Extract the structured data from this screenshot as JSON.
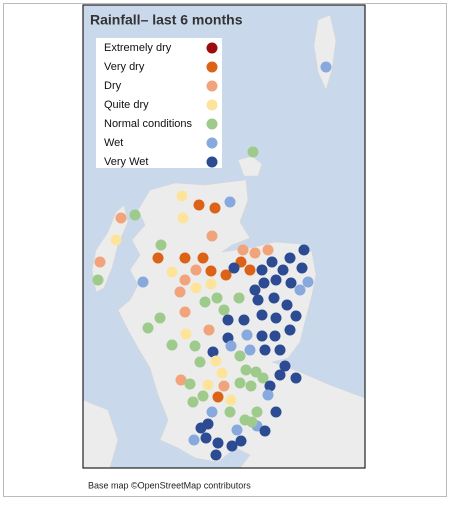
{
  "title": "Rainfall– last 6 months",
  "legend": {
    "items": [
      {
        "label": "Extremely dry",
        "color": "#9b0d0d"
      },
      {
        "label": "Very dry",
        "color": "#dc6217"
      },
      {
        "label": "Dry",
        "color": "#f1a47b"
      },
      {
        "label": "Quite dry",
        "color": "#fde49a"
      },
      {
        "label": "Normal conditions",
        "color": "#9ecb8b"
      },
      {
        "label": "Wet",
        "color": "#87a9dd"
      },
      {
        "label": "Very Wet",
        "color": "#2c4b92"
      }
    ]
  },
  "caption": "Base map ©OpenStreetMap contributors"
}
